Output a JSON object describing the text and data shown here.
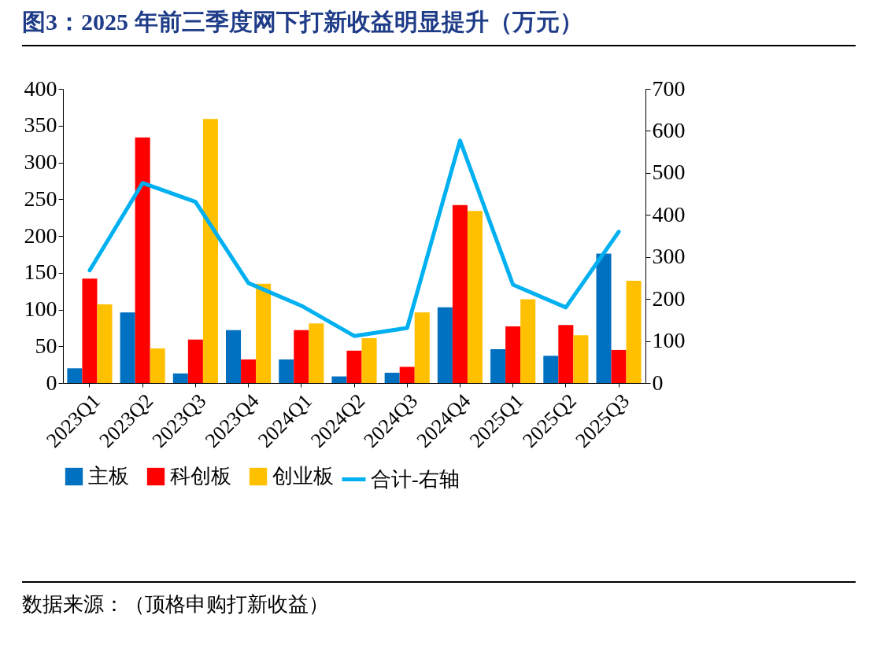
{
  "chart_data": {
    "type": "bar",
    "title": "图3：2025 年前三季度网下打新收益明显提升（万元）",
    "categories": [
      "2023Q1",
      "2023Q2",
      "2023Q3",
      "2023Q4",
      "2024Q1",
      "2024Q2",
      "2024Q3",
      "2024Q4",
      "2025Q1",
      "2025Q2",
      "2025Q3"
    ],
    "series": [
      {
        "name": "主板",
        "color": "#0070c0",
        "values": [
          20,
          96,
          13,
          72,
          32,
          9,
          14,
          103,
          46,
          37,
          176
        ]
      },
      {
        "name": "科创板",
        "color": "#ff0000",
        "values": [
          142,
          334,
          59,
          32,
          72,
          44,
          22,
          242,
          77,
          79,
          45
        ]
      },
      {
        "name": "创业板",
        "color": "#ffc000",
        "values": [
          107,
          47,
          359,
          135,
          81,
          61,
          96,
          234,
          114,
          65,
          139
        ]
      },
      {
        "name": "合计-右轴",
        "type": "line",
        "axis": "y2",
        "color": "#00b0f0",
        "values": [
          268,
          476,
          431,
          238,
          184,
          112,
          131,
          577,
          234,
          180,
          360
        ]
      }
    ],
    "ylim": [
      0,
      400
    ],
    "yticks": [
      0,
      50,
      100,
      150,
      200,
      250,
      300,
      350,
      400
    ],
    "y2lim": [
      0,
      700
    ],
    "y2ticks": [
      0,
      100,
      200,
      300,
      400,
      500,
      600,
      700
    ],
    "legend": "bottom",
    "annotations": [
      "数据来源：（顶格申购打新收益）"
    ]
  }
}
